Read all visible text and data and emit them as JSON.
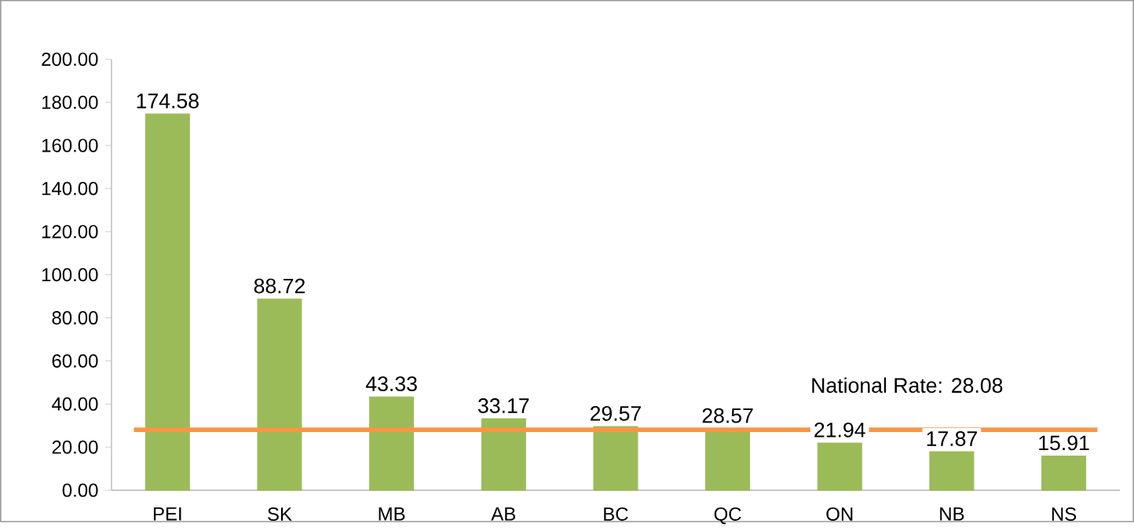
{
  "chart_data": {
    "type": "bar",
    "categories": [
      "PEI",
      "SK",
      "MB",
      "AB",
      "BC",
      "QC",
      "ON",
      "NB",
      "NS"
    ],
    "values": [
      174.58,
      88.72,
      43.33,
      33.17,
      29.57,
      28.57,
      21.94,
      17.87,
      15.91
    ],
    "value_labels": [
      "174.58",
      "88.72",
      "43.33",
      "33.17",
      "29.57",
      "28.57",
      "21.94",
      "17.87",
      "15.91"
    ],
    "color": "#9bbb59",
    "ylim": [
      0,
      200
    ],
    "yticks": [
      {
        "value": 0,
        "label": "0.00"
      },
      {
        "value": 20,
        "label": "20.00"
      },
      {
        "value": 40,
        "label": "40.00"
      },
      {
        "value": 60,
        "label": "60.00"
      },
      {
        "value": 80,
        "label": "80.00"
      },
      {
        "value": 100,
        "label": "100.00"
      },
      {
        "value": 120,
        "label": "120.00"
      },
      {
        "value": 140,
        "label": "140.00"
      },
      {
        "value": 160,
        "label": "160.00"
      },
      {
        "value": 180,
        "label": "180.00"
      },
      {
        "value": 200,
        "label": "200.00"
      }
    ],
    "ref_lines": [
      {
        "axis": "y",
        "value": 28.08,
        "label": "National Rate: 28.08",
        "color": "#f79646"
      }
    ]
  }
}
